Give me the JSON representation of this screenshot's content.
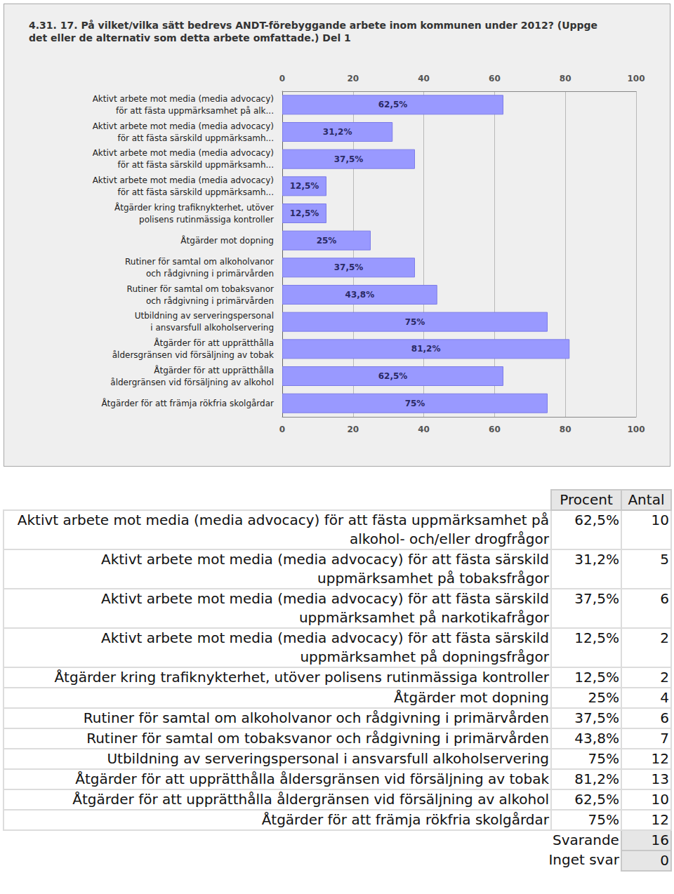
{
  "chart_data": {
    "type": "bar",
    "title": "4.31. 17. På vilket/vilka sätt bedrevs ANDT-förebyggande arbete inom kommunen under 2012? (Uppge det eller de alternativ som detta arbete omfattade.) Del 1",
    "orientation": "horizontal",
    "categories": [
      "Aktivt arbete mot media (media advocacy)\nför att fästa uppmärksamhet på alk...",
      "Aktivt arbete mot media (media advocacy)\nför att fästa särskild uppmärksamh...",
      "Aktivt arbete mot media (media advocacy)\nför att fästa särskild uppmärksamh...",
      "Aktivt arbete mot media (media advocacy)\nför att fästa särskild uppmärksamh...",
      "Åtgärder kring trafiknykterhet, utöver\npolisens rutinmässiga kontroller",
      "Åtgärder mot dopning",
      "Rutiner för samtal om alkoholvanor\noch rådgivning i primärvården",
      "Rutiner för samtal om tobaksvanor\noch rådgivning i primärvården",
      "Utbildning av serveringspersonal\ni ansvarsfull alkoholservering",
      "Åtgärder för att upprätthålla\nåldersgränsen vid försäljning av tobak",
      "Åtgärder för att upprätthålla\nåldergränsen vid försäljning av alkohol",
      "Åtgärder för att främja rökfria skolgårdar"
    ],
    "values": [
      62.5,
      31.2,
      37.5,
      12.5,
      12.5,
      25,
      37.5,
      43.8,
      75,
      81.2,
      62.5,
      75
    ],
    "value_labels": [
      "62,5%",
      "31,2%",
      "37,5%",
      "12,5%",
      "12,5%",
      "25%",
      "37,5%",
      "43,8%",
      "75%",
      "81,2%",
      "62,5%",
      "75%"
    ],
    "data_labels": true,
    "color": "#9999ff",
    "xlim": [
      0,
      100
    ],
    "xticks": [
      0,
      20,
      40,
      60,
      80,
      100
    ],
    "grid": true
  },
  "table": {
    "header": [
      "Procent",
      "Antal"
    ],
    "rows": [
      [
        "Aktivt arbete mot media (media advocacy) för att fästa uppmärksamhet på alkohol- och/eller drogfrågor",
        "62,5%",
        10
      ],
      [
        "Aktivt arbete mot media (media advocacy) för att fästa särskild uppmärksamhet på tobaksfrågor",
        "31,2%",
        5
      ],
      [
        "Aktivt arbete mot media (media advocacy) för att fästa särskild uppmärksamhet på narkotikafrågor",
        "37,5%",
        6
      ],
      [
        "Aktivt arbete mot media (media advocacy) för att fästa särskild uppmärksamhet på dopningsfrågor",
        "12,5%",
        2
      ],
      [
        "Åtgärder kring trafiknykterhet, utöver polisens rutinmässiga kontroller",
        "12,5%",
        2
      ],
      [
        "Åtgärder mot dopning",
        "25%",
        4
      ],
      [
        "Rutiner för samtal om alkoholvanor och rådgivning i primärvården",
        "37,5%",
        6
      ],
      [
        "Rutiner för samtal om tobaksvanor och rådgivning i primärvården",
        "43,8%",
        7
      ],
      [
        "Utbildning av serveringspersonal i ansvarsfull alkoholservering",
        "75%",
        12
      ],
      [
        "Åtgärder för att upprätthålla åldersgränsen vid försäljning av tobak",
        "81,2%",
        13
      ],
      [
        "Åtgärder för att upprätthålla åldergränsen vid försäljning av alkohol",
        "62,5%",
        10
      ],
      [
        "Åtgärder för att främja rökfria skolgårdar",
        "75%",
        12
      ]
    ],
    "footer": [
      [
        "Svarande",
        16
      ],
      [
        "Inget svar",
        0
      ]
    ]
  }
}
